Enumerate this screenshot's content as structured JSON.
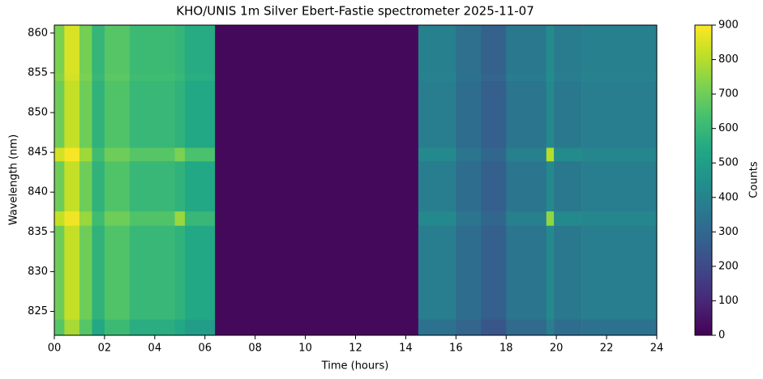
{
  "chart_data": {
    "type": "heatmap",
    "title": "KHO/UNIS 1m Silver Ebert-Fastie spectrometer 2025-11-07",
    "xlabel": "Time (hours)",
    "ylabel": "Wavelength (nm)",
    "x_edges": [
      0,
      0.4,
      1,
      1.5,
      2,
      3,
      4.8,
      5.2,
      6.4,
      14.5,
      16,
      17,
      18,
      19.6,
      19.9,
      21,
      24
    ],
    "y_edges": [
      822,
      824,
      835.8,
      837.6,
      843.9,
      845.6,
      854,
      855,
      861
    ],
    "values": [
      [
        660,
        780,
        660,
        540,
        610,
        560,
        540,
        500,
        20,
        340,
        290,
        240,
        310,
        380,
        320,
        340
      ],
      [
        700,
        820,
        700,
        580,
        650,
        600,
        580,
        540,
        20,
        380,
        320,
        270,
        350,
        420,
        360,
        380
      ],
      [
        820,
        880,
        760,
        620,
        700,
        650,
        760,
        600,
        20,
        420,
        350,
        300,
        390,
        750,
        420,
        410
      ],
      [
        700,
        820,
        700,
        580,
        650,
        600,
        580,
        540,
        20,
        380,
        320,
        270,
        350,
        420,
        360,
        380
      ],
      [
        840,
        890,
        770,
        620,
        700,
        660,
        720,
        640,
        20,
        420,
        350,
        300,
        390,
        800,
        430,
        410
      ],
      [
        700,
        820,
        700,
        580,
        650,
        600,
        580,
        540,
        20,
        380,
        320,
        270,
        350,
        420,
        360,
        380
      ],
      [
        730,
        840,
        720,
        600,
        670,
        620,
        600,
        560,
        20,
        400,
        340,
        290,
        370,
        440,
        380,
        400
      ],
      [
        720,
        850,
        710,
        590,
        660,
        610,
        590,
        550,
        20,
        390,
        330,
        280,
        360,
        430,
        370,
        390
      ]
    ],
    "colormap": "viridis",
    "clim": [
      0,
      900
    ],
    "colorbar_label": "Counts",
    "colorbar_ticks": [
      0,
      100,
      200,
      300,
      400,
      500,
      600,
      700,
      800,
      900
    ],
    "xlim": [
      0,
      24
    ],
    "ylim": [
      822,
      861
    ],
    "xticks": [
      {
        "value": 0,
        "label": "00"
      },
      {
        "value": 2,
        "label": "02"
      },
      {
        "value": 4,
        "label": "04"
      },
      {
        "value": 6,
        "label": "06"
      },
      {
        "value": 8,
        "label": "08"
      },
      {
        "value": 10,
        "label": "10"
      },
      {
        "value": 12,
        "label": "12"
      },
      {
        "value": 14,
        "label": "14"
      },
      {
        "value": 16,
        "label": "16"
      },
      {
        "value": 18,
        "label": "18"
      },
      {
        "value": 20,
        "label": "20"
      },
      {
        "value": 22,
        "label": "22"
      },
      {
        "value": 24,
        "label": "24"
      }
    ],
    "yticks": [
      825,
      830,
      835,
      840,
      845,
      850,
      855,
      860
    ]
  }
}
